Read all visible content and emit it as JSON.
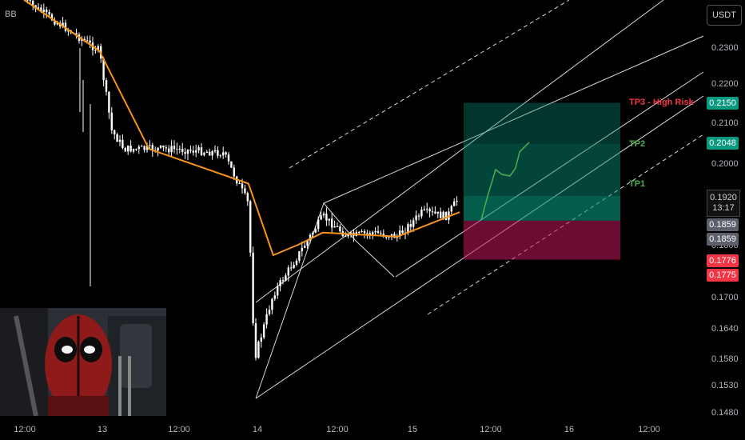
{
  "indicator": "BB",
  "currency": "USDT",
  "price_axis": [
    "0.2300",
    "0.2200",
    "0.2100",
    "0.2000",
    "0.1800",
    "0.1700",
    "0.1640",
    "0.1580",
    "0.1530",
    "0.1480"
  ],
  "time_axis": [
    "12:00",
    "13",
    "12:00",
    "14",
    "12:00",
    "15",
    "12:00",
    "16",
    "12:00"
  ],
  "tp_labels": {
    "tp3": "TP3 - High Risk",
    "tp2": "TP2",
    "tp1": "TP1"
  },
  "price_tags": {
    "tp3": "0.2150",
    "tp2": "0.2048",
    "last_price": "0.1920",
    "countdown": "13:17",
    "entry_a": "0.1859",
    "entry_b": "0.1859",
    "stop_a": "0.1776",
    "stop_b": "0.1775"
  },
  "colors": {
    "background": "#000000",
    "candles": "#ffffff",
    "moving_average": "#f7931a",
    "target_zone": "#089981",
    "stop_zone": "#c2185b",
    "projection": "#4caf50",
    "tp3_text": "#f23645"
  },
  "chart_data": {
    "type": "candlestick",
    "symbol_quote": "USDT",
    "x_ticks": [
      "12:00",
      "13",
      "12:00",
      "14",
      "12:00",
      "15",
      "12:00",
      "16",
      "12:00"
    ],
    "y_ticks": [
      0.23,
      0.22,
      0.21,
      0.2,
      0.18,
      0.17,
      0.164,
      0.158,
      0.153,
      0.148
    ],
    "close_path": [
      {
        "t": "day12 12:00",
        "price": 0.243
      },
      {
        "t": "day13 00:00",
        "price": 0.229
      },
      {
        "t": "day13 02:00",
        "price": 0.208
      },
      {
        "t": "day13 04:00",
        "price": 0.2035
      },
      {
        "t": "day13 12:00",
        "price": 0.2035
      },
      {
        "t": "day13 20:00",
        "price": 0.2025
      },
      {
        "t": "day14 00:00",
        "price": 0.19
      },
      {
        "t": "day14 01:00",
        "price": 0.158
      },
      {
        "t": "day14 04:00",
        "price": 0.1705
      },
      {
        "t": "day14 08:00",
        "price": 0.178
      },
      {
        "t": "day14 12:00",
        "price": 0.187
      },
      {
        "t": "day14 16:00",
        "price": 0.182
      },
      {
        "t": "day14 20:00",
        "price": 0.183
      },
      {
        "t": "day15 00:00",
        "price": 0.182
      },
      {
        "t": "day15 04:00",
        "price": 0.188
      },
      {
        "t": "day15 08:00",
        "price": 0.187
      },
      {
        "t": "day15 10:00",
        "price": 0.192
      }
    ],
    "moving_average_path": [
      {
        "t": "day12 12:00",
        "price": 0.243
      },
      {
        "t": "day13 00:00",
        "price": 0.229
      },
      {
        "t": "day13 08:00",
        "price": 0.2035
      },
      {
        "t": "day14 00:00",
        "price": 0.195
      },
      {
        "t": "day14 04:00",
        "price": 0.178
      },
      {
        "t": "day14 08:00",
        "price": 0.18
      },
      {
        "t": "day14 12:00",
        "price": 0.183
      },
      {
        "t": "day15 00:00",
        "price": 0.182
      },
      {
        "t": "day15 10:00",
        "price": 0.188
      }
    ],
    "targets": {
      "tp3": 0.215,
      "tp2": 0.2048,
      "tp1": 0.192
    },
    "entry": 0.1859,
    "stop": 0.1776,
    "last_price": 0.192,
    "moving_average_label": "BB"
  }
}
